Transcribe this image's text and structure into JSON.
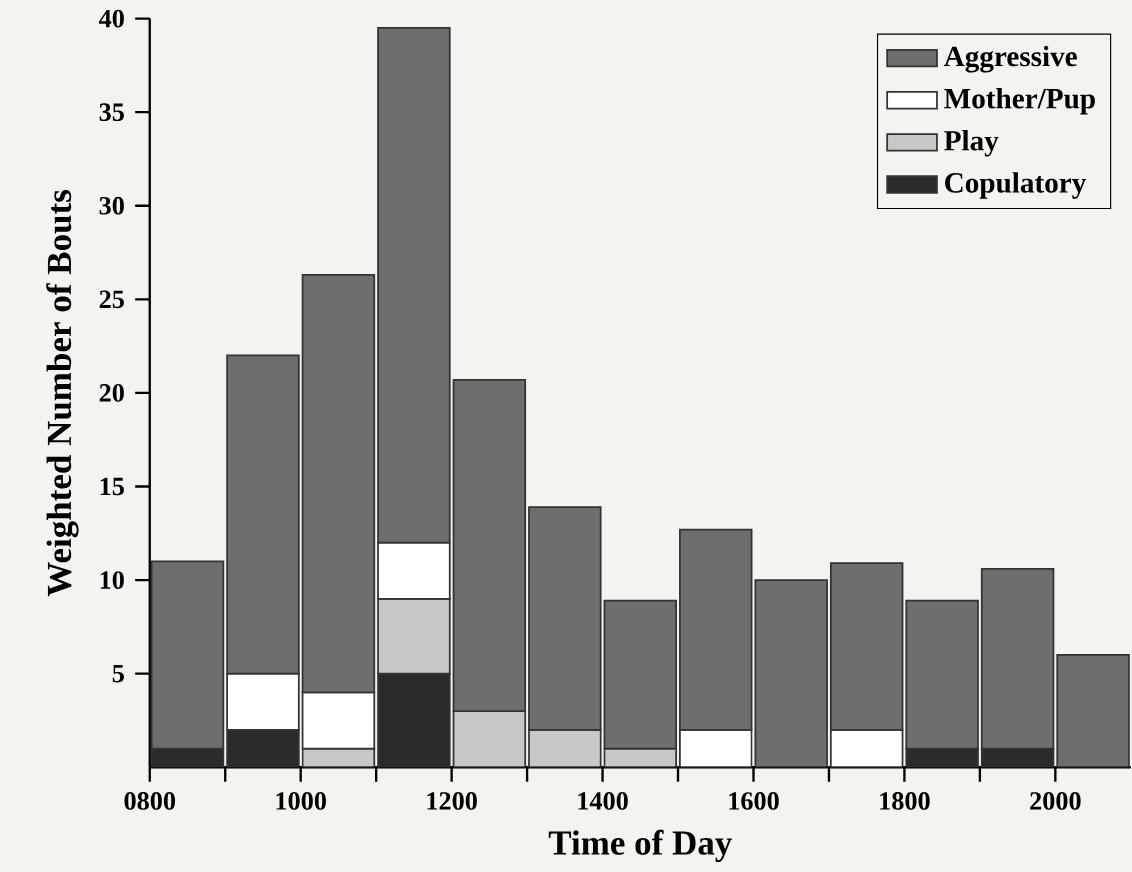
{
  "chart_data": {
    "type": "bar",
    "stacked": true,
    "xlabel": "Time of Day",
    "ylabel": "Weighted Number of Bouts",
    "x": [
      850,
      950,
      1050,
      1150,
      1250,
      1350,
      1450,
      1550,
      1650,
      1750,
      1850,
      1950,
      2050
    ],
    "series": [
      {
        "name": "Copulatory",
        "color": "#2b2b2b",
        "values": [
          1,
          2,
          0,
          5,
          0,
          0,
          0,
          0,
          0,
          0,
          1,
          1,
          0
        ]
      },
      {
        "name": "Play",
        "color": "#c8c8c8",
        "values": [
          0,
          0,
          1,
          4,
          3,
          2,
          1,
          0,
          0,
          0,
          0,
          0,
          0
        ]
      },
      {
        "name": "Mother/Pup",
        "color": "#ffffff",
        "values": [
          0,
          3,
          3,
          3,
          0,
          0,
          0,
          2,
          0,
          2,
          0,
          0,
          0
        ]
      },
      {
        "name": "Aggressive",
        "color": "#6e6e6e",
        "values": [
          10,
          17,
          22.3,
          27.5,
          17.7,
          11.9,
          7.9,
          10.7,
          10,
          8.9,
          7.9,
          9.6,
          6
        ]
      }
    ],
    "xlim": [
      800,
      2100
    ],
    "xticks": [
      {
        "value": 800,
        "label": "0800"
      },
      {
        "value": 900,
        "label": null
      },
      {
        "value": 1000,
        "label": "1000"
      },
      {
        "value": 1100,
        "label": null
      },
      {
        "value": 1200,
        "label": "1200"
      },
      {
        "value": 1300,
        "label": null
      },
      {
        "value": 1400,
        "label": "1400"
      },
      {
        "value": 1500,
        "label": null
      },
      {
        "value": 1600,
        "label": "1600"
      },
      {
        "value": 1700,
        "label": null
      },
      {
        "value": 1800,
        "label": "1800"
      },
      {
        "value": 1900,
        "label": null
      },
      {
        "value": 2000,
        "label": "2000"
      }
    ],
    "ylim": [
      0,
      40
    ],
    "yticks": [
      5,
      10,
      15,
      20,
      25,
      30,
      35,
      40
    ],
    "legend": "top right"
  }
}
